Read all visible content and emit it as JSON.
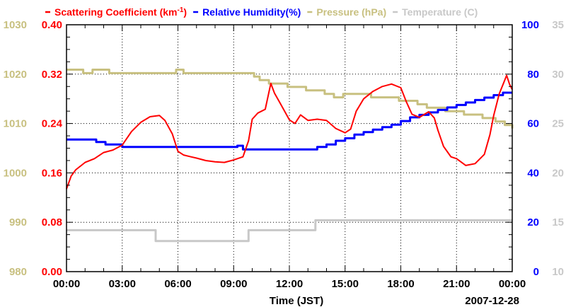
{
  "chart_data": {
    "type": "line",
    "title": "",
    "xlabel": "Time (JST)",
    "date_label": "2007-12-28",
    "x_tick_labels": [
      "00:00",
      "03:00",
      "06:00",
      "09:00",
      "12:00",
      "15:00",
      "18:00",
      "21:00",
      "00:00"
    ],
    "x_range_hours": [
      0,
      24
    ],
    "grid": true,
    "colors": {
      "scattering": "#ff0000",
      "humidity": "#0000ff",
      "pressure": "#c8c080",
      "temperature": "#c8c8c8",
      "axis": "#000000"
    },
    "legend": [
      {
        "key": "scattering",
        "label": "Scattering Coefficient (km",
        "sup": "-1",
        "suffix": ")"
      },
      {
        "key": "humidity",
        "label": "Relative Humidity(%)",
        "sup": "",
        "suffix": ""
      },
      {
        "key": "pressure",
        "label": "Pressure (hPa)",
        "sup": "",
        "suffix": ""
      },
      {
        "key": "temperature",
        "label": "Temperature (C)",
        "sup": "",
        "suffix": ""
      }
    ],
    "axes": {
      "scattering": {
        "range": [
          0,
          0.4
        ],
        "ticks": [
          "0.00",
          "0.08",
          "0.16",
          "0.24",
          "0.32",
          "0.40"
        ]
      },
      "pressure": {
        "range": [
          980,
          1030
        ],
        "ticks": [
          "980",
          "990",
          "1000",
          "1010",
          "1020",
          "1030"
        ]
      },
      "humidity": {
        "range": [
          0,
          100
        ],
        "ticks": [
          "0",
          "20",
          "40",
          "60",
          "80",
          "100"
        ]
      },
      "temperature": {
        "range": [
          10,
          35
        ],
        "ticks": [
          "10",
          "15",
          "20",
          "25",
          "30",
          "35"
        ]
      }
    },
    "series": [
      {
        "name": "Scattering Coefficient",
        "key": "scattering",
        "axis": "scattering",
        "points": [
          [
            0.0,
            0.134
          ],
          [
            0.25,
            0.155
          ],
          [
            0.5,
            0.165
          ],
          [
            1.0,
            0.177
          ],
          [
            1.5,
            0.183
          ],
          [
            2.0,
            0.193
          ],
          [
            2.5,
            0.197
          ],
          [
            3.0,
            0.205
          ],
          [
            3.5,
            0.227
          ],
          [
            4.0,
            0.242
          ],
          [
            4.5,
            0.251
          ],
          [
            5.0,
            0.253
          ],
          [
            5.3,
            0.245
          ],
          [
            5.7,
            0.223
          ],
          [
            6.0,
            0.195
          ],
          [
            6.3,
            0.189
          ],
          [
            6.7,
            0.186
          ],
          [
            7.0,
            0.184
          ],
          [
            7.5,
            0.18
          ],
          [
            8.0,
            0.178
          ],
          [
            8.5,
            0.177
          ],
          [
            9.0,
            0.181
          ],
          [
            9.5,
            0.186
          ],
          [
            9.8,
            0.212
          ],
          [
            10.0,
            0.247
          ],
          [
            10.3,
            0.257
          ],
          [
            10.7,
            0.263
          ],
          [
            11.0,
            0.305
          ],
          [
            11.2,
            0.289
          ],
          [
            11.5,
            0.273
          ],
          [
            12.0,
            0.246
          ],
          [
            12.3,
            0.24
          ],
          [
            12.6,
            0.254
          ],
          [
            13.0,
            0.245
          ],
          [
            13.5,
            0.247
          ],
          [
            14.0,
            0.245
          ],
          [
            14.5,
            0.232
          ],
          [
            15.0,
            0.225
          ],
          [
            15.3,
            0.231
          ],
          [
            15.6,
            0.26
          ],
          [
            16.0,
            0.28
          ],
          [
            16.5,
            0.292
          ],
          [
            17.0,
            0.3
          ],
          [
            17.5,
            0.304
          ],
          [
            18.0,
            0.298
          ],
          [
            18.3,
            0.275
          ],
          [
            18.6,
            0.255
          ],
          [
            19.0,
            0.25
          ],
          [
            19.5,
            0.259
          ],
          [
            19.8,
            0.249
          ],
          [
            20.0,
            0.229
          ],
          [
            20.3,
            0.203
          ],
          [
            20.7,
            0.186
          ],
          [
            21.0,
            0.183
          ],
          [
            21.5,
            0.172
          ],
          [
            22.0,
            0.175
          ],
          [
            22.5,
            0.19
          ],
          [
            22.8,
            0.222
          ],
          [
            23.0,
            0.253
          ],
          [
            23.3,
            0.288
          ],
          [
            23.5,
            0.303
          ],
          [
            23.7,
            0.318
          ],
          [
            23.85,
            0.304
          ],
          [
            24.0,
            0.295
          ]
        ]
      },
      {
        "name": "Relative Humidity",
        "key": "humidity",
        "axis": "humidity",
        "points": [
          [
            0.0,
            53.5
          ],
          [
            1.0,
            53.5
          ],
          [
            1.6,
            52.5
          ],
          [
            2.1,
            51.5
          ],
          [
            3.0,
            50.5
          ],
          [
            5.0,
            50.5
          ],
          [
            9.0,
            50.5
          ],
          [
            9.2,
            51
          ],
          [
            9.5,
            49.5
          ],
          [
            11.0,
            49.5
          ],
          [
            13.0,
            49.5
          ],
          [
            13.5,
            50.5
          ],
          [
            14.0,
            51.5
          ],
          [
            14.5,
            53
          ],
          [
            15.0,
            54
          ],
          [
            15.5,
            55.5
          ],
          [
            16.0,
            56.5
          ],
          [
            16.5,
            57.5
          ],
          [
            17.0,
            58.5
          ],
          [
            17.5,
            59.5
          ],
          [
            18.0,
            61
          ],
          [
            18.5,
            62.5
          ],
          [
            19.0,
            63.5
          ],
          [
            19.5,
            64.5
          ],
          [
            20.0,
            65.5
          ],
          [
            20.5,
            66.5
          ],
          [
            21.0,
            67.5
          ],
          [
            21.5,
            68.5
          ],
          [
            22.0,
            69.5
          ],
          [
            22.5,
            70.5
          ],
          [
            23.0,
            71.5
          ],
          [
            23.5,
            72.5
          ],
          [
            24.0,
            72.5
          ]
        ]
      },
      {
        "name": "Pressure",
        "key": "pressure",
        "axis": "pressure",
        "points": [
          [
            0.0,
            1020.9
          ],
          [
            0.9,
            1020.2
          ],
          [
            1.4,
            1020.9
          ],
          [
            2.3,
            1020.2
          ],
          [
            5.9,
            1020.9
          ],
          [
            6.3,
            1020.2
          ],
          [
            10.1,
            1019.5
          ],
          [
            10.4,
            1018.8
          ],
          [
            10.9,
            1018.1
          ],
          [
            11.9,
            1017.4
          ],
          [
            12.9,
            1016.7
          ],
          [
            13.9,
            1016.0
          ],
          [
            14.4,
            1015.3
          ],
          [
            14.9,
            1016.0
          ],
          [
            16.4,
            1015.3
          ],
          [
            17.9,
            1014.6
          ],
          [
            18.9,
            1013.9
          ],
          [
            19.4,
            1013.2
          ],
          [
            20.4,
            1012.5
          ],
          [
            21.4,
            1011.8
          ],
          [
            22.4,
            1011.1
          ],
          [
            23.1,
            1010.4
          ],
          [
            23.6,
            1009.7
          ],
          [
            24.0,
            1009.0
          ]
        ]
      },
      {
        "name": "Temperature",
        "key": "temperature",
        "axis": "temperature",
        "points": [
          [
            0.0,
            14.2
          ],
          [
            4.8,
            14.2
          ],
          [
            4.8,
            13.1
          ],
          [
            9.8,
            13.1
          ],
          [
            9.8,
            14.2
          ],
          [
            13.4,
            14.2
          ],
          [
            13.4,
            15.2
          ],
          [
            24.0,
            15.2
          ]
        ]
      }
    ]
  }
}
